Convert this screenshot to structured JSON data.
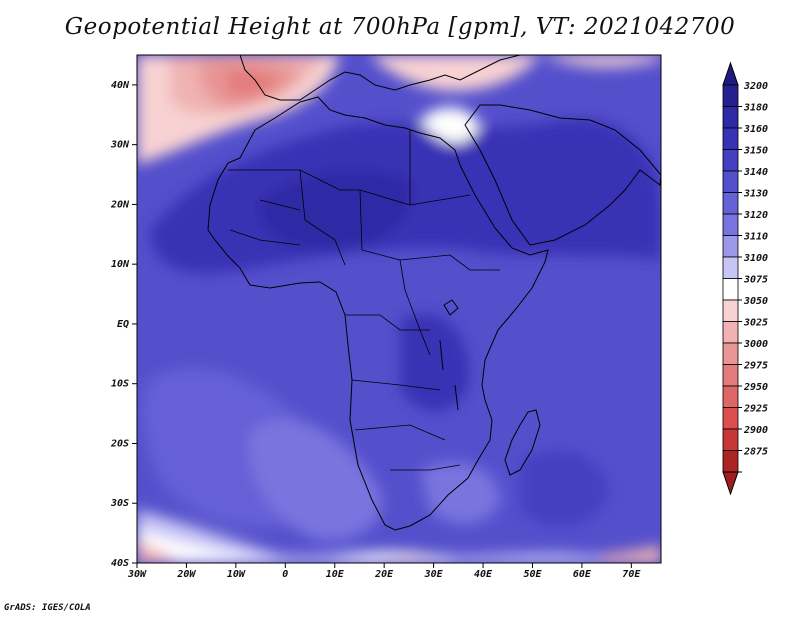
{
  "title": "Geopotential Height at 700hPa [gpm], VT: 2021042700",
  "credit": "GrADS: IGES/COLA",
  "map": {
    "region": "Africa",
    "lon_range": [
      -30,
      76
    ],
    "lat_range": [
      -40,
      45
    ],
    "lat_ticks": [
      {
        "value": 40,
        "label": "40N"
      },
      {
        "value": 30,
        "label": "30N"
      },
      {
        "value": 20,
        "label": "20N"
      },
      {
        "value": 10,
        "label": "10N"
      },
      {
        "value": 0,
        "label": "EQ"
      },
      {
        "value": -10,
        "label": "10S"
      },
      {
        "value": -20,
        "label": "20S"
      },
      {
        "value": -30,
        "label": "30S"
      },
      {
        "value": -40,
        "label": "40S"
      }
    ],
    "lon_ticks": [
      {
        "value": -30,
        "label": "30W"
      },
      {
        "value": -20,
        "label": "20W"
      },
      {
        "value": -10,
        "label": "10W"
      },
      {
        "value": 0,
        "label": "0"
      },
      {
        "value": 10,
        "label": "10E"
      },
      {
        "value": 20,
        "label": "20E"
      },
      {
        "value": 30,
        "label": "30E"
      },
      {
        "value": 40,
        "label": "40E"
      },
      {
        "value": 50,
        "label": "50E"
      },
      {
        "value": 60,
        "label": "60E"
      },
      {
        "value": 70,
        "label": "70E"
      }
    ]
  },
  "colorbar": {
    "levels": [
      {
        "label": "3200",
        "color": "#24208f"
      },
      {
        "label": "3180",
        "color": "#2e2aa5"
      },
      {
        "label": "3160",
        "color": "#3833b5"
      },
      {
        "label": "3150",
        "color": "#4440c2"
      },
      {
        "label": "3140",
        "color": "#5450cc"
      },
      {
        "label": "3130",
        "color": "#6561d6"
      },
      {
        "label": "3120",
        "color": "#7874df"
      },
      {
        "label": "3110",
        "color": "#9b98ea"
      },
      {
        "label": "3100",
        "color": "#c7c5f5"
      },
      {
        "label": "3075",
        "color": "#ffffff"
      },
      {
        "label": "3050",
        "color": "#f8d2d2"
      },
      {
        "label": "3025",
        "color": "#f0b2b2"
      },
      {
        "label": "3000",
        "color": "#e89595"
      },
      {
        "label": "2975",
        "color": "#e37c7c"
      },
      {
        "label": "2950",
        "color": "#df6666"
      },
      {
        "label": "2925",
        "color": "#dc4e4e"
      },
      {
        "label": "2900",
        "color": "#c93636"
      },
      {
        "label": "2875",
        "color": "#ad2424"
      }
    ],
    "top_triangle_color": "#1e1a80",
    "bottom_triangle_color": "#9e1d1d"
  }
}
